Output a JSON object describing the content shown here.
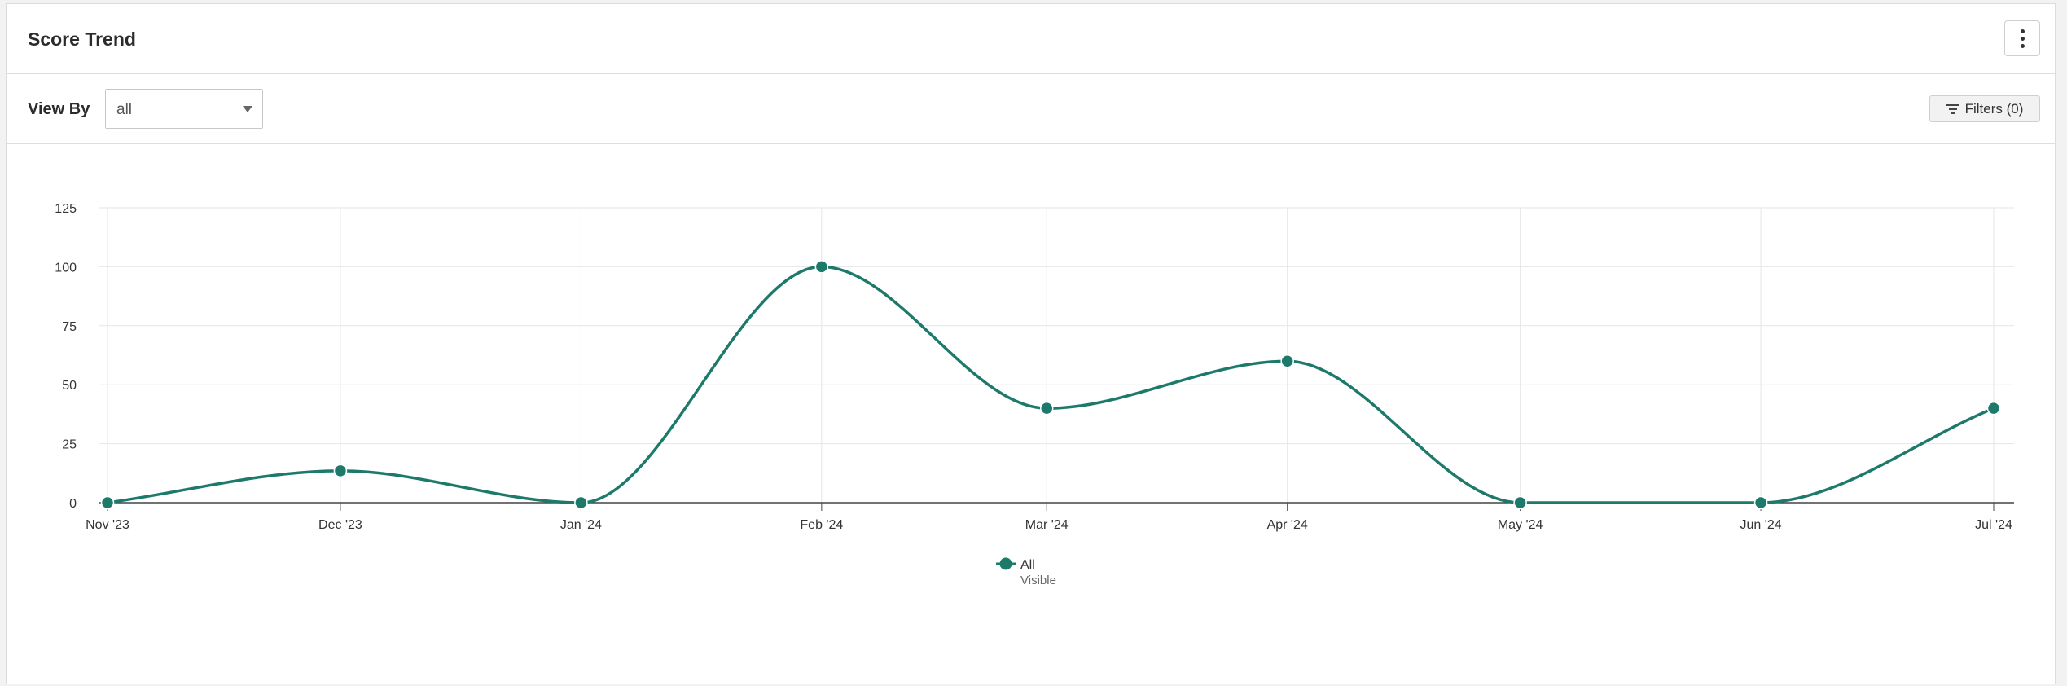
{
  "header": {
    "title": "Score Trend"
  },
  "toolbar": {
    "view_by_label": "View By",
    "view_by_value": "all",
    "filters_label": "Filters (0)"
  },
  "icons": {
    "menu": "more-vertical-icon",
    "filter": "filter-lines-icon",
    "dropdown": "caret-down-icon"
  },
  "colors": {
    "series": "#1d7a6b",
    "grid": "#e6e6e6",
    "axis": "#444444"
  },
  "chart_data": {
    "type": "line",
    "smooth": true,
    "title": "",
    "xlabel": "",
    "ylabel": "",
    "categories": [
      "Nov '23",
      "Dec '23",
      "Jan '24",
      "Feb '24",
      "Mar '24",
      "Apr '24",
      "May '24",
      "Jun '24",
      "Jul '24"
    ],
    "x_dates": [
      "2023-11-01",
      "2023-12-01",
      "2024-01-01",
      "2024-02-01",
      "2024-03-01",
      "2024-04-01",
      "2024-05-01",
      "2024-06-01",
      "2024-07-01"
    ],
    "yticks": [
      0,
      25,
      50,
      75,
      100,
      125
    ],
    "ylim": [
      0,
      125
    ],
    "grid": true,
    "legend_position": "bottom-center",
    "series": [
      {
        "name": "All",
        "status": "Visible",
        "color": "#1d7a6b",
        "values": [
          0,
          13.5,
          0,
          100,
          40,
          60,
          0,
          0,
          40
        ]
      }
    ]
  }
}
